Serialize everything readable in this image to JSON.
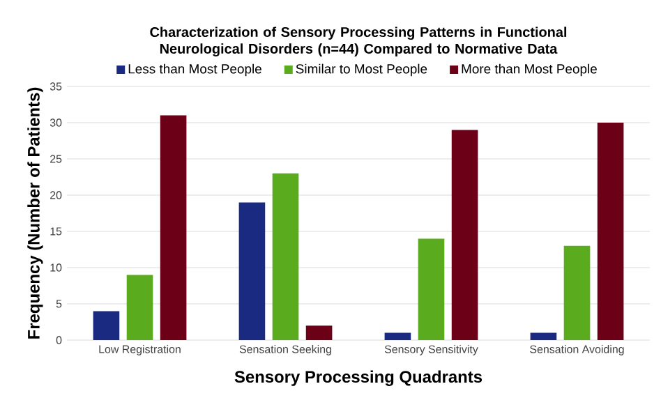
{
  "chart_data": {
    "type": "bar",
    "title": "Characterization of Sensory Processing Patterns in Functional Neurological Disorders (n=44) Compared to Normative Data",
    "xlabel": "Sensory Processing Quadrants",
    "ylabel": "Frequency (Number of Patients)",
    "categories": [
      "Low Registration",
      "Sensation Seeking",
      "Sensory Sensitivity",
      "Sensation Avoiding"
    ],
    "series": [
      {
        "name": "Less than Most People",
        "color": "#1a2a80",
        "values": [
          4,
          19,
          1,
          1
        ]
      },
      {
        "name": "Similar to Most People",
        "color": "#5aab1e",
        "values": [
          9,
          23,
          14,
          13
        ]
      },
      {
        "name": "More than Most People",
        "color": "#6b0016",
        "values": [
          31,
          2,
          29,
          30
        ]
      }
    ],
    "ylim": [
      0,
      35
    ],
    "yticks": [
      0,
      5,
      10,
      15,
      20,
      25,
      30,
      35
    ],
    "grid": "y",
    "legend": "top"
  }
}
